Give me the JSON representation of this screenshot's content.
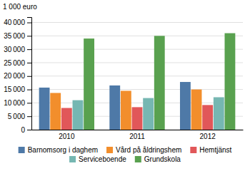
{
  "chart_data": {
    "type": "bar",
    "ylabel": "1 000 euro",
    "categories": [
      "2010",
      "2011",
      "2012"
    ],
    "series": [
      {
        "name": "Barnomsorg i daghem",
        "values": [
          15700,
          16500,
          17800
        ]
      },
      {
        "name": "Vård på åldringshem",
        "values": [
          13700,
          14500,
          15000
        ]
      },
      {
        "name": "Hemtjänst",
        "values": [
          8100,
          8400,
          9200
        ]
      },
      {
        "name": "Serviceboende",
        "values": [
          11000,
          11800,
          12100
        ]
      },
      {
        "name": "Grundskola",
        "values": [
          34000,
          35000,
          36000
        ]
      }
    ],
    "ylim": [
      0,
      42000
    ],
    "yticks": [
      0,
      {
        "value": 5000,
        "label": "5 000"
      },
      {
        "value": 10000,
        "label": "10 000"
      },
      {
        "value": 15000,
        "label": "15 000"
      },
      {
        "value": 20000,
        "label": "20 000"
      },
      {
        "value": 25000,
        "label": "25 000"
      },
      {
        "value": 30000,
        "label": "30 000"
      },
      {
        "value": 35000,
        "label": "35 000"
      },
      {
        "value": 40000,
        "label": "40 000"
      }
    ],
    "grid": true,
    "legend": "bottom"
  }
}
